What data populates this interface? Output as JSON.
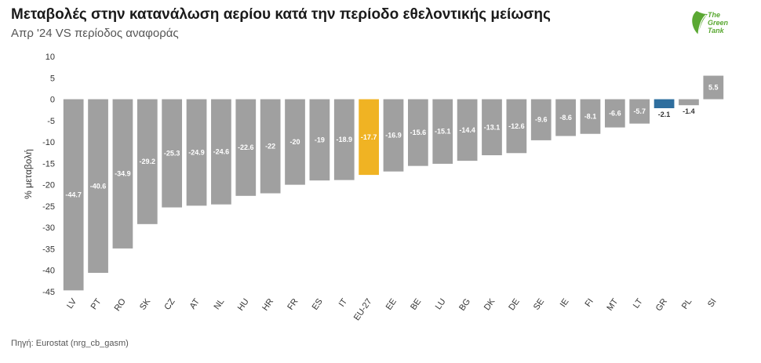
{
  "header": {
    "title": "Μεταβολές στην κατανάλωση αερίου κατά την περίοδο εθελοντικής μείωσης",
    "subtitle": "Απρ '24 VS περίοδος αναφοράς"
  },
  "logo": {
    "line1": "The",
    "line2": "Green",
    "line3": "Tank",
    "color": "#5aa832"
  },
  "footer": {
    "source": "Πηγή: Eurostat (nrg_cb_gasm)"
  },
  "chart_data": {
    "type": "bar",
    "ylabel": "% μεταβολή",
    "ylim": [
      -45,
      10
    ],
    "yticks": [
      10,
      5,
      0,
      -5,
      -10,
      -15,
      -20,
      -25,
      -30,
      -35,
      -40,
      -45
    ],
    "grid": false,
    "categories": [
      "LV",
      "PT",
      "RO",
      "SK",
      "CZ",
      "AT",
      "NL",
      "HU",
      "HR",
      "FR",
      "ES",
      "IT",
      "EU-27",
      "EE",
      "BE",
      "LU",
      "BG",
      "DK",
      "DE",
      "SE",
      "IE",
      "FI",
      "MT",
      "LT",
      "GR",
      "PL",
      "SI"
    ],
    "values": [
      -44.7,
      -40.6,
      -34.9,
      -29.2,
      -25.3,
      -24.9,
      -24.6,
      -22.6,
      -22,
      -20,
      -19,
      -18.9,
      -17.7,
      -16.9,
      -15.6,
      -15.1,
      -14.4,
      -13.1,
      -12.6,
      -9.6,
      -8.6,
      -8.1,
      -6.6,
      -5.7,
      -2.1,
      -1.4,
      5.5
    ],
    "colors": {
      "default": "#a0a0a0",
      "EU-27": "#f0b323",
      "GR": "#2e6e9e"
    }
  }
}
